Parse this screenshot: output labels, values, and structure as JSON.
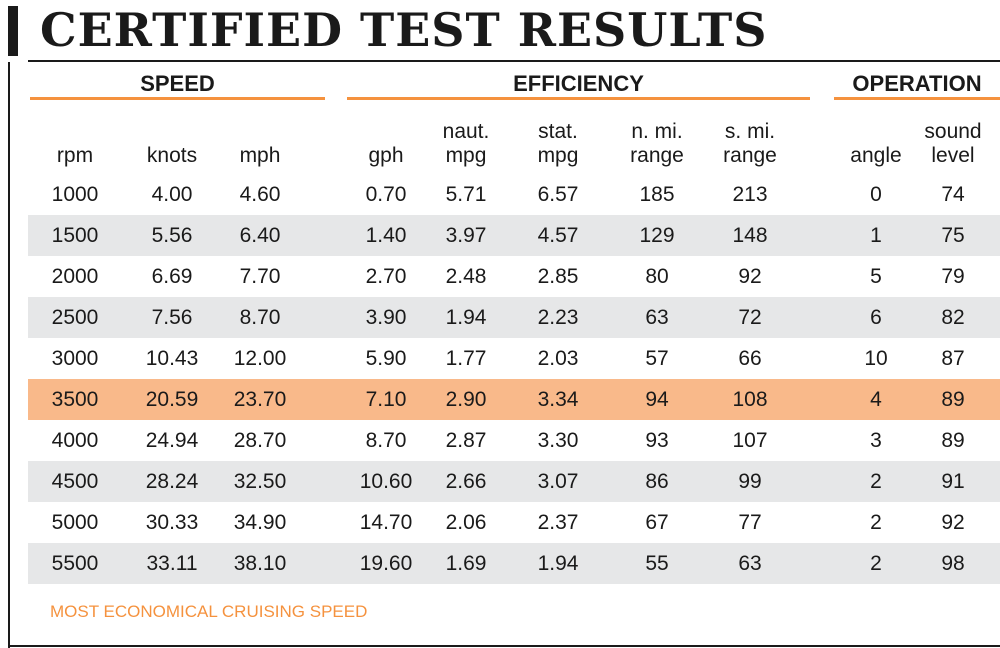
{
  "title": "CERTIFIED TEST RESULTS",
  "groups": {
    "speed": "SPEED",
    "efficiency": "EFFICIENCY",
    "operation": "OPERATION"
  },
  "headers": [
    "rpm",
    "knots",
    "mph",
    "gph",
    "naut.\nmpg",
    "stat.\nmpg",
    "n. mi.\nrange",
    "s. mi.\nrange",
    "angle",
    "sound\nlevel"
  ],
  "rows": [
    [
      "1000",
      "4.00",
      "4.60",
      "0.70",
      "5.71",
      "6.57",
      "185",
      "213",
      "0",
      "74"
    ],
    [
      "1500",
      "5.56",
      "6.40",
      "1.40",
      "3.97",
      "4.57",
      "129",
      "148",
      "1",
      "75"
    ],
    [
      "2000",
      "6.69",
      "7.70",
      "2.70",
      "2.48",
      "2.85",
      "80",
      "92",
      "5",
      "79"
    ],
    [
      "2500",
      "7.56",
      "8.70",
      "3.90",
      "1.94",
      "2.23",
      "63",
      "72",
      "6",
      "82"
    ],
    [
      "3000",
      "10.43",
      "12.00",
      "5.90",
      "1.77",
      "2.03",
      "57",
      "66",
      "10",
      "87"
    ],
    [
      "3500",
      "20.59",
      "23.70",
      "7.10",
      "2.90",
      "3.34",
      "94",
      "108",
      "4",
      "89"
    ],
    [
      "4000",
      "24.94",
      "28.70",
      "8.70",
      "2.87",
      "3.30",
      "93",
      "107",
      "3",
      "89"
    ],
    [
      "4500",
      "28.24",
      "32.50",
      "10.60",
      "2.66",
      "3.07",
      "86",
      "99",
      "2",
      "91"
    ],
    [
      "5000",
      "30.33",
      "34.90",
      "14.70",
      "2.06",
      "2.37",
      "67",
      "77",
      "2",
      "92"
    ],
    [
      "5500",
      "33.11",
      "38.10",
      "19.60",
      "1.69",
      "1.94",
      "55",
      "63",
      "2",
      "98"
    ]
  ],
  "highlight_row": 5,
  "footnote": "MOST ECONOMICAL CRUISING SPEED",
  "colors": {
    "accent": "#f5923e",
    "highlight": "#f9b98a",
    "shade": "#e6e7e8",
    "text": "#1a1a1a"
  }
}
